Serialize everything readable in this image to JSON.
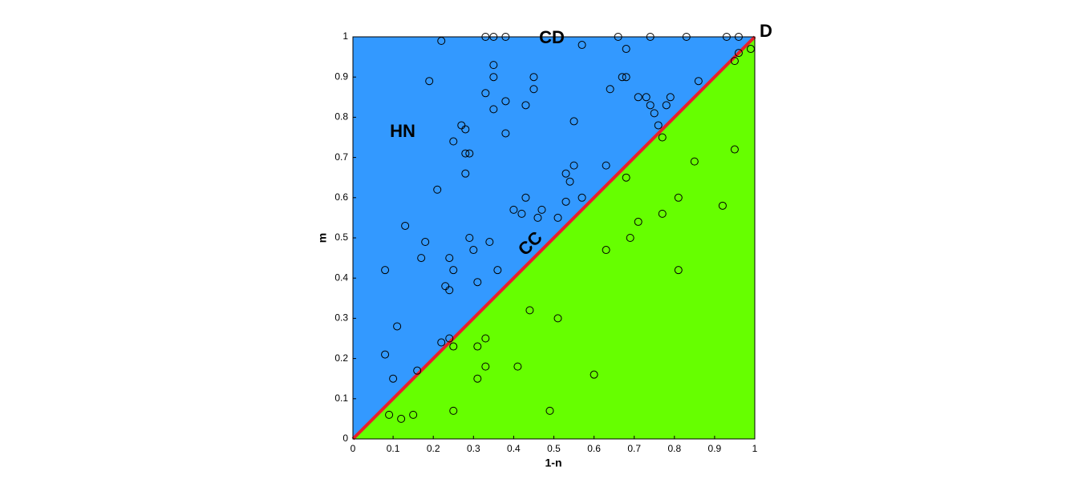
{
  "chart_data": {
    "type": "scatter",
    "xlabel": "1-n",
    "ylabel": "m",
    "annotations": [
      "HN",
      "CD",
      "CC",
      "D"
    ],
    "upper_color": "#3399ff",
    "lower_color": "#66ff00",
    "diagonal_color": "#e8202a",
    "marker_color": "#000000",
    "x": [
      0.22,
      0.33,
      0.35,
      0.38,
      0.66,
      0.74,
      0.83,
      0.93,
      0.96,
      0.57,
      0.99,
      0.68,
      0.96,
      0.95,
      0.35,
      0.19,
      0.35,
      0.45,
      0.67,
      0.68,
      0.86,
      0.45,
      0.64,
      0.33,
      0.71,
      0.73,
      0.79,
      0.38,
      0.43,
      0.74,
      0.78,
      0.35,
      0.75,
      0.55,
      0.76,
      0.27,
      0.28,
      0.38,
      0.77,
      0.25,
      0.28,
      0.29,
      0.95,
      0.85,
      0.55,
      0.63,
      0.28,
      0.53,
      0.68,
      0.54,
      0.21,
      0.43,
      0.57,
      0.81,
      0.53,
      0.92,
      0.4,
      0.47,
      0.42,
      0.77,
      0.46,
      0.51,
      0.71,
      0.13,
      0.29,
      0.69,
      0.18,
      0.34,
      0.3,
      0.63,
      0.17,
      0.24,
      0.08,
      0.25,
      0.36,
      0.81,
      0.31,
      0.23,
      0.24,
      0.44,
      0.51,
      0.11,
      0.33,
      0.24,
      0.22,
      0.31,
      0.25,
      0.08,
      0.33,
      0.41,
      0.16,
      0.6,
      0.1,
      0.31,
      0.09,
      0.15,
      0.12,
      0.25,
      0.49
    ],
    "values": [
      0.99,
      1.0,
      1.0,
      1.0,
      1.0,
      1.0,
      1.0,
      1.0,
      1.0,
      0.98,
      0.97,
      0.97,
      0.96,
      0.94,
      0.93,
      0.89,
      0.9,
      0.9,
      0.9,
      0.9,
      0.89,
      0.87,
      0.87,
      0.86,
      0.85,
      0.85,
      0.85,
      0.84,
      0.83,
      0.83,
      0.83,
      0.82,
      0.81,
      0.79,
      0.78,
      0.78,
      0.77,
      0.76,
      0.75,
      0.74,
      0.71,
      0.71,
      0.72,
      0.69,
      0.68,
      0.68,
      0.66,
      0.66,
      0.65,
      0.64,
      0.62,
      0.6,
      0.6,
      0.6,
      0.59,
      0.58,
      0.57,
      0.57,
      0.56,
      0.56,
      0.55,
      0.55,
      0.54,
      0.53,
      0.5,
      0.5,
      0.49,
      0.49,
      0.47,
      0.47,
      0.45,
      0.45,
      0.42,
      0.42,
      0.42,
      0.42,
      0.39,
      0.38,
      0.37,
      0.32,
      0.3,
      0.28,
      0.25,
      0.25,
      0.24,
      0.23,
      0.23,
      0.21,
      0.18,
      0.18,
      0.17,
      0.16,
      0.15,
      0.15,
      0.06,
      0.06,
      0.05,
      0.07,
      0.07
    ],
    "xlim": [
      0,
      1
    ],
    "ylim": [
      0,
      1
    ],
    "xticks": [
      0,
      0.1,
      0.2,
      0.3,
      0.4,
      0.5,
      0.6,
      0.7,
      0.8,
      0.9,
      1
    ],
    "yticks": [
      0,
      0.1,
      0.2,
      0.3,
      0.4,
      0.5,
      0.6,
      0.7,
      0.8,
      0.9,
      1
    ]
  }
}
